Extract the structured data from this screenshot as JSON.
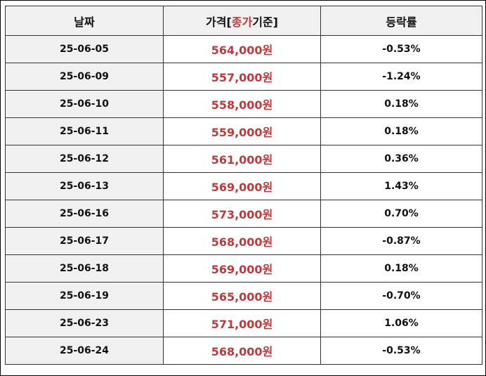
{
  "table": {
    "headers": {
      "date": "날짜",
      "price_prefix": "가격[",
      "price_highlight": "종가",
      "price_suffix": "기준]",
      "change": "등락률"
    },
    "rows": [
      {
        "date": "25-06-05",
        "price": "564,000원",
        "change": "-0.53%"
      },
      {
        "date": "25-06-09",
        "price": "557,000원",
        "change": "-1.24%"
      },
      {
        "date": "25-06-10",
        "price": "558,000원",
        "change": "0.18%"
      },
      {
        "date": "25-06-11",
        "price": "559,000원",
        "change": "0.18%"
      },
      {
        "date": "25-06-12",
        "price": "561,000원",
        "change": "0.36%"
      },
      {
        "date": "25-06-13",
        "price": "569,000원",
        "change": "1.43%"
      },
      {
        "date": "25-06-16",
        "price": "573,000원",
        "change": "0.70%"
      },
      {
        "date": "25-06-17",
        "price": "568,000원",
        "change": "-0.87%"
      },
      {
        "date": "25-06-18",
        "price": "569,000원",
        "change": "0.18%"
      },
      {
        "date": "25-06-19",
        "price": "565,000원",
        "change": "-0.70%"
      },
      {
        "date": "25-06-23",
        "price": "571,000원",
        "change": "1.06%"
      },
      {
        "date": "25-06-24",
        "price": "568,000원",
        "change": "-0.53%"
      }
    ]
  },
  "colors": {
    "price": "#c0393b",
    "header_bg": "#f0f0f0",
    "border": "#333333"
  }
}
